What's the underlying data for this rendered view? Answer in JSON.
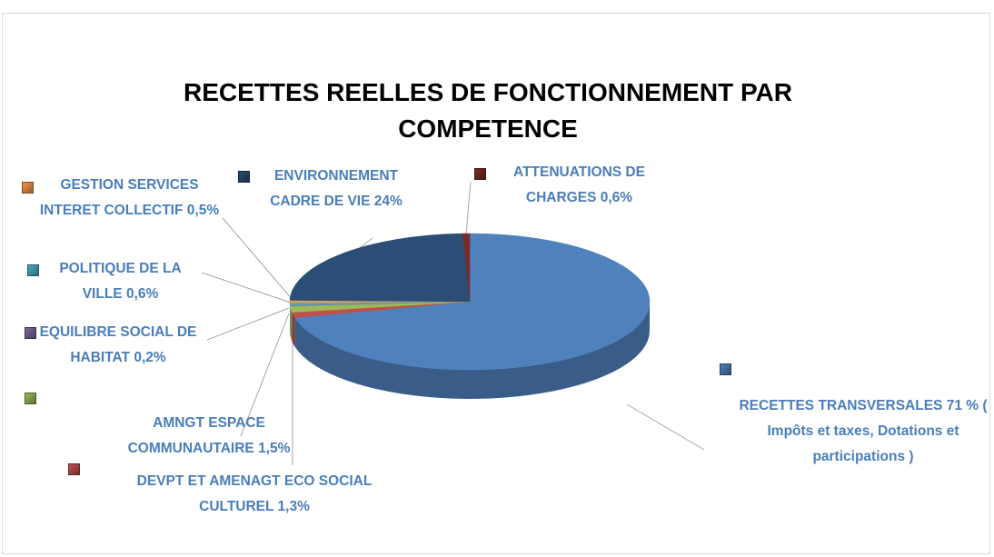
{
  "chart_data": {
    "type": "pie3d",
    "title": "RECETTES REELLES DE FONCTIONNEMENT PAR COMPETENCE",
    "categories": [
      "RECETTES TRANSVERSALES",
      "DEVPT ET AMENAGT ECO SOCIAL CULTUREL",
      "AMNGT ESPACE COMMUNAUTAIRE",
      "EQUILIBRE SOCIAL DE HABITAT",
      "POLITIQUE DE LA VILLE",
      "GESTION SERVICES INTERET COLLECTIF",
      "ENVIRONNEMENT CADRE DE VIE",
      "ATTENUATIONS DE CHARGES"
    ],
    "values": [
      71,
      1.3,
      1.5,
      0.2,
      0.6,
      0.5,
      24,
      0.6
    ],
    "value_labels": [
      "71 %",
      "1,3%",
      "1,5%",
      "0,2%",
      "0,6%",
      "0,5%",
      "24%",
      "0,6%"
    ],
    "annotation": "( Impôts et taxes, Dotations et participations )",
    "colors": [
      "#4f81bd",
      "#c0504d",
      "#9bbb59",
      "#8064a2",
      "#4bacc6",
      "#f79646",
      "#2c4d75",
      "#772c2a"
    ]
  }
}
